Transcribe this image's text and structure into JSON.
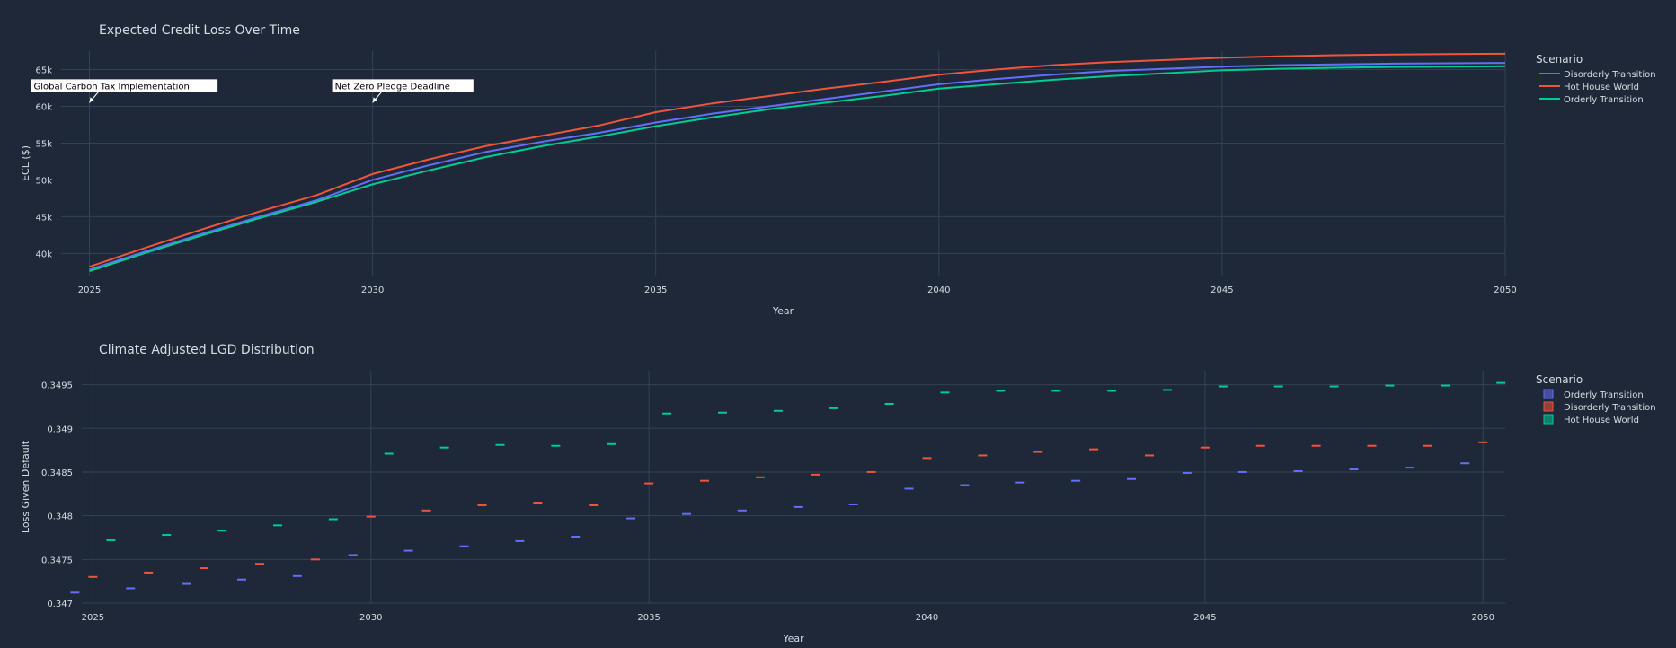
{
  "chart_data": [
    {
      "type": "line",
      "title": "Expected Credit Loss Over Time",
      "xlabel": "Year",
      "ylabel": "ECL ($)",
      "xlim": [
        2024.5,
        2050
      ],
      "ylim": [
        37000,
        67500
      ],
      "x_ticks": [
        2025,
        2030,
        2035,
        2040,
        2045,
        2050
      ],
      "y_ticks": [
        40000,
        45000,
        50000,
        55000,
        60000,
        65000
      ],
      "y_tick_labels": [
        "40k",
        "45k",
        "50k",
        "55k",
        "60k",
        "65k"
      ],
      "grid": true,
      "legend": {
        "title": "Scenario",
        "placement": "right"
      },
      "x": [
        2025,
        2026,
        2027,
        2028,
        2029,
        2030,
        2031,
        2032,
        2033,
        2034,
        2035,
        2036,
        2037,
        2038,
        2039,
        2040,
        2041,
        2042,
        2043,
        2044,
        2045,
        2046,
        2047,
        2048,
        2049,
        2050
      ],
      "series": [
        {
          "name": "Disorderly Transition",
          "color": "#636efa",
          "values": [
            37800,
            40300,
            42700,
            45000,
            47200,
            50000,
            52000,
            53800,
            55200,
            56400,
            57800,
            59000,
            60000,
            61000,
            62000,
            63000,
            63700,
            64300,
            64800,
            65100,
            65400,
            65600,
            65700,
            65800,
            65850,
            65900
          ]
        },
        {
          "name": "Hot House World",
          "color": "#ef553b",
          "values": [
            38200,
            40800,
            43300,
            45700,
            47900,
            50800,
            52800,
            54600,
            56000,
            57400,
            59200,
            60400,
            61400,
            62400,
            63300,
            64300,
            65000,
            65600,
            66000,
            66300,
            66600,
            66800,
            66950,
            67050,
            67100,
            67150
          ]
        },
        {
          "name": "Orderly Transition",
          "color": "#00cc96",
          "values": [
            37600,
            40100,
            42500,
            44800,
            47000,
            49400,
            51300,
            53100,
            54600,
            55900,
            57300,
            58500,
            59600,
            60500,
            61400,
            62400,
            63000,
            63600,
            64100,
            64500,
            64900,
            65100,
            65250,
            65350,
            65400,
            65450
          ]
        }
      ],
      "annotations": [
        {
          "text": "Global Carbon Tax Implementation",
          "x": 2025,
          "y": 60500
        },
        {
          "text": "Net Zero Pledge Deadline",
          "x": 2030,
          "y": 60500
        }
      ]
    },
    {
      "type": "scatter",
      "title": "Climate Adjusted LGD Distribution",
      "xlabel": "Year",
      "ylabel": "Loss Given Default",
      "xlim": [
        2024.8,
        2050.4
      ],
      "ylim": [
        0.347,
        0.34966
      ],
      "x_ticks": [
        2025,
        2030,
        2035,
        2040,
        2045,
        2050
      ],
      "y_ticks": [
        0.347,
        0.3475,
        0.348,
        0.3485,
        0.349,
        0.3495
      ],
      "y_tick_labels": [
        "0.347",
        "0.3475",
        "0.348",
        "0.3485",
        "0.349",
        "0.3495"
      ],
      "grid": true,
      "legend": {
        "title": "Scenario",
        "placement": "right"
      },
      "x": [
        2025,
        2026,
        2027,
        2028,
        2029,
        2030,
        2031,
        2032,
        2033,
        2034,
        2035,
        2036,
        2037,
        2038,
        2039,
        2040,
        2041,
        2042,
        2043,
        2044,
        2045,
        2046,
        2047,
        2048,
        2049,
        2050
      ],
      "series": [
        {
          "name": "Orderly Transition",
          "color": "#636efa",
          "values": [
            0.34712,
            0.34717,
            0.34722,
            0.34727,
            0.34731,
            0.34755,
            0.3476,
            0.34765,
            0.34771,
            0.34776,
            0.34797,
            0.34802,
            0.34806,
            0.3481,
            0.34813,
            0.34831,
            0.34835,
            0.34838,
            0.3484,
            0.34842,
            0.34849,
            0.3485,
            0.34851,
            0.34853,
            0.34855,
            0.3486
          ]
        },
        {
          "name": "Disorderly Transition",
          "color": "#ef553b",
          "values": [
            0.3473,
            0.34735,
            0.3474,
            0.34745,
            0.3475,
            0.34799,
            0.34806,
            0.34812,
            0.34815,
            0.34812,
            0.34837,
            0.3484,
            0.34844,
            0.34847,
            0.3485,
            0.34866,
            0.34869,
            0.34873,
            0.34876,
            0.34869,
            0.34878,
            0.3488,
            0.3488,
            0.3488,
            0.3488,
            0.34884
          ]
        },
        {
          "name": "Hot House World",
          "color": "#00cc96",
          "values": [
            0.34772,
            0.34778,
            0.34783,
            0.34789,
            0.34796,
            0.34871,
            0.34878,
            0.34881,
            0.3488,
            0.34882,
            0.34917,
            0.34918,
            0.3492,
            0.34923,
            0.34928,
            0.34941,
            0.34943,
            0.34943,
            0.34943,
            0.34944,
            0.34948,
            0.34948,
            0.34948,
            0.34949,
            0.34949,
            0.34952
          ]
        }
      ]
    }
  ]
}
